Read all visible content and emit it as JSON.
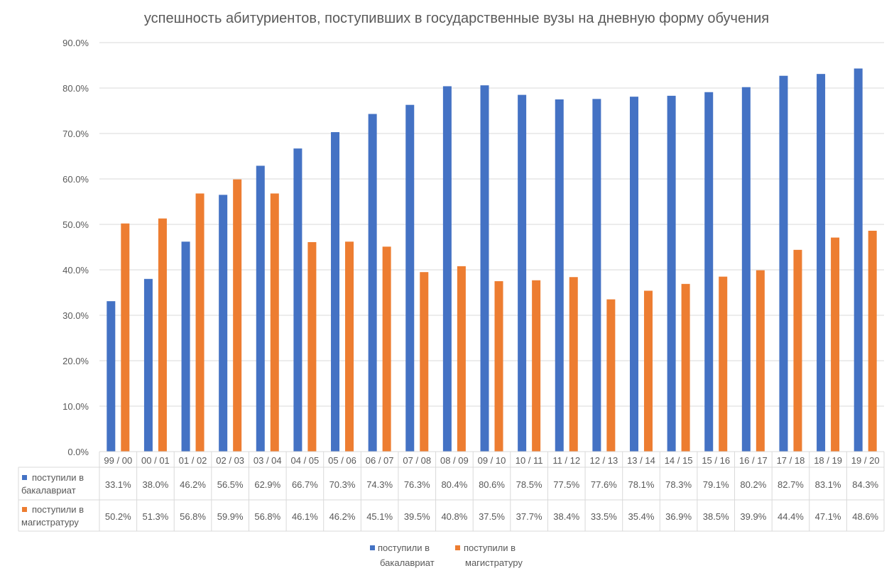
{
  "chart_data": {
    "type": "bar",
    "title": "успешность абитуриентов, поступивших в государственные вузы на дневную форму обучения",
    "categories": [
      "99 / 00",
      "00 / 01",
      "01 / 02",
      "02 / 03",
      "03 / 04",
      "04 / 05",
      "05 / 06",
      "06 / 07",
      "07 / 08",
      "08 / 09",
      "09 / 10",
      "10 / 11",
      "11 / 12",
      "12 / 13",
      "13 / 14",
      "14 / 15",
      "15 / 16",
      "16 / 17",
      "17 / 18",
      "18 / 19",
      "19 / 20"
    ],
    "series": [
      {
        "name": "поступили в бакалавриат",
        "name_lines": [
          "поступили в",
          "бакалавриат"
        ],
        "color": "#4472C4",
        "values": [
          33.1,
          38.0,
          46.2,
          56.5,
          62.9,
          66.7,
          70.3,
          74.3,
          76.3,
          80.4,
          80.6,
          78.5,
          77.5,
          77.6,
          78.1,
          78.3,
          79.1,
          80.2,
          82.7,
          83.1,
          84.3
        ],
        "labels": [
          "33.1%",
          "38.0%",
          "46.2%",
          "56.5%",
          "62.9%",
          "66.7%",
          "70.3%",
          "74.3%",
          "76.3%",
          "80.4%",
          "80.6%",
          "78.5%",
          "77.5%",
          "77.6%",
          "78.1%",
          "78.3%",
          "79.1%",
          "80.2%",
          "82.7%",
          "83.1%",
          "84.3%"
        ]
      },
      {
        "name": "поступили в магистратуру",
        "name_lines": [
          "поступили в",
          "магистратуру"
        ],
        "color": "#ED7D31",
        "values": [
          50.2,
          51.3,
          56.8,
          59.9,
          56.8,
          46.1,
          46.2,
          45.1,
          39.5,
          40.8,
          37.5,
          37.7,
          38.4,
          33.5,
          35.4,
          36.9,
          38.5,
          39.9,
          44.4,
          47.1,
          48.6
        ],
        "labels": [
          "50.2%",
          "51.3%",
          "56.8%",
          "59.9%",
          "56.8%",
          "46.1%",
          "46.2%",
          "45.1%",
          "39.5%",
          "40.8%",
          "37.5%",
          "37.7%",
          "38.4%",
          "33.5%",
          "35.4%",
          "36.9%",
          "38.5%",
          "39.9%",
          "44.4%",
          "47.1%",
          "48.6%"
        ]
      }
    ],
    "y_ticks": [
      "0.0%",
      "10.0%",
      "20.0%",
      "30.0%",
      "40.0%",
      "50.0%",
      "60.0%",
      "70.0%",
      "80.0%",
      "90.0%"
    ],
    "ylim": [
      0,
      90
    ],
    "grid": true,
    "data_table": true,
    "legend_position": "bottom"
  }
}
